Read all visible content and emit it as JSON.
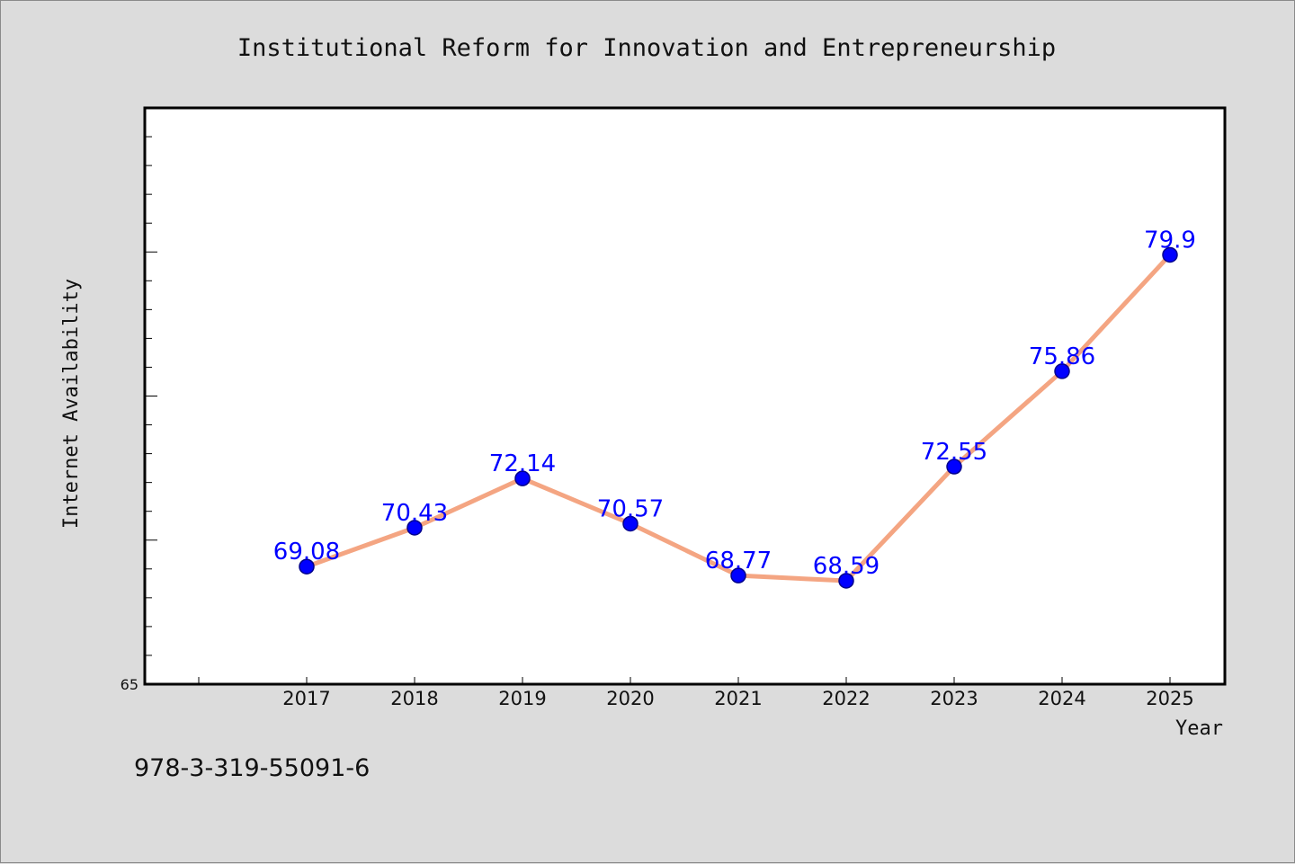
{
  "footer": {
    "code": "978-3-319-55091-6"
  },
  "colors": {
    "background": "#dcdcdc",
    "plot_background": "#ffffff",
    "line": "#f4a582",
    "marker": "#0000ff",
    "label": "#0000ff"
  },
  "chart_data": {
    "type": "line",
    "title": "Institutional Reform for Innovation and Entrepreneurship",
    "xlabel": "Year",
    "ylabel": "Internet Availability",
    "categories": [
      "2017",
      "2018",
      "2019",
      "2020",
      "2021",
      "2022",
      "2023",
      "2024",
      "2025"
    ],
    "values": [
      69.08,
      70.43,
      72.14,
      70.57,
      68.77,
      68.59,
      72.55,
      75.86,
      79.9
    ],
    "data_labels": [
      "69.08",
      "70.43",
      "72.14",
      "70.57",
      "68.77",
      "68.59",
      "72.55",
      "75.86",
      "79.9"
    ],
    "ylim": [
      65,
      85
    ],
    "yticks": [
      "65"
    ],
    "grid": false,
    "legend": "none"
  }
}
